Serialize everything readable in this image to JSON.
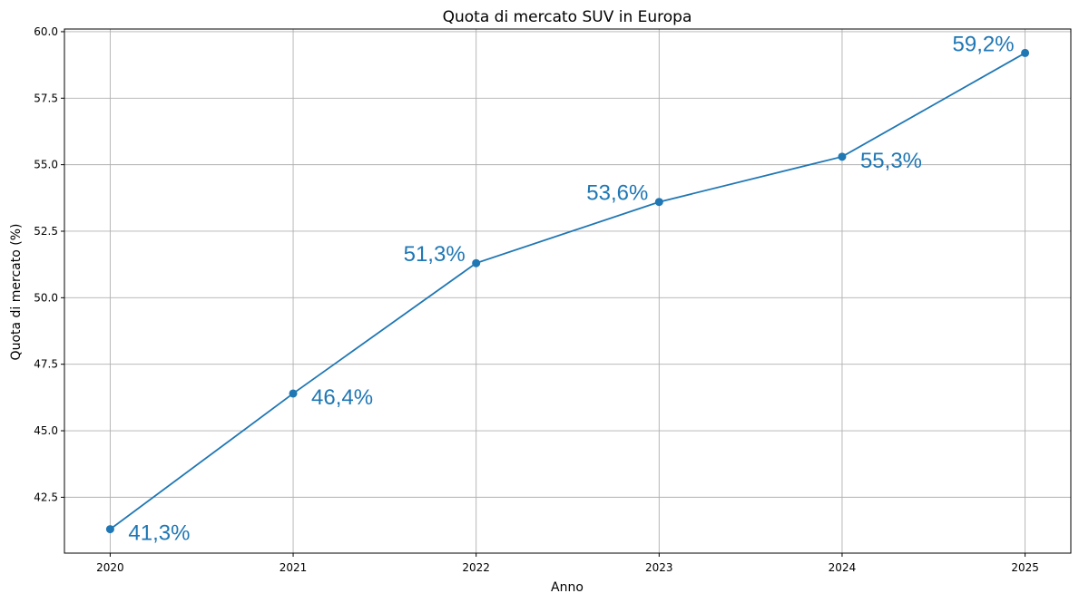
{
  "colors": {
    "series": "#1f77b4",
    "grid": "#b0b0b0",
    "axis": "#000000",
    "background": "#ffffff"
  },
  "chart_data": {
    "type": "line",
    "title": "Quota di mercato SUV in Europa",
    "xlabel": "Anno",
    "ylabel": "Quota di mercato (%)",
    "x": [
      2020,
      2021,
      2022,
      2023,
      2024,
      2025
    ],
    "x_tick_labels": [
      "2020",
      "2021",
      "2022",
      "2023",
      "2024",
      "2025"
    ],
    "xlim": [
      2019.75,
      2025.25
    ],
    "ylim": [
      40.4,
      60.1
    ],
    "y_ticks": [
      42.5,
      45.0,
      47.5,
      50.0,
      52.5,
      55.0,
      57.5,
      60.0
    ],
    "y_tick_labels": [
      "42.5",
      "45.0",
      "47.5",
      "50.0",
      "52.5",
      "55.0",
      "57.5",
      "60.0"
    ],
    "grid": true,
    "marker": "circle",
    "series": [
      {
        "values": [
          41.3,
          46.4,
          51.3,
          53.6,
          55.3,
          59.2
        ],
        "data_labels": [
          "41,3%",
          "46,4%",
          "51,3%",
          "53,6%",
          "55,3%",
          "59,2%"
        ],
        "label_side": [
          "below-right",
          "below-right",
          "above-left",
          "above-left",
          "below-right",
          "above-left"
        ]
      }
    ]
  }
}
